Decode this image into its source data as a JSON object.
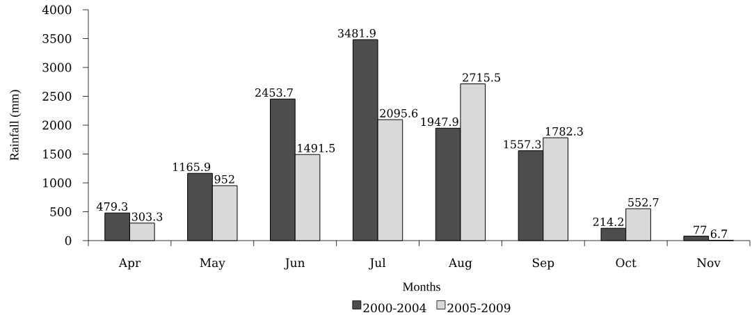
{
  "chart_data": {
    "type": "bar",
    "xlabel": "Months",
    "ylabel": "Rainfall (mm)",
    "categories": [
      "Apr",
      "May",
      "Jun",
      "Jul",
      "Aug",
      "Sep",
      "Oct",
      "Nov"
    ],
    "series": [
      {
        "name": "2000-2004",
        "color": "#4d4d4d",
        "values": [
          479.3,
          1165.9,
          2453.7,
          3481.9,
          1947.9,
          1557.3,
          214.2,
          77
        ]
      },
      {
        "name": "2005-2009",
        "color": "#d9d9d9",
        "values": [
          303.3,
          952,
          1491.5,
          2095.6,
          2715.5,
          1782.3,
          552.7,
          6.7
        ]
      }
    ],
    "ylim": [
      0,
      4000
    ],
    "yticks": [
      0,
      500,
      1000,
      1500,
      2000,
      2500,
      3000,
      3500,
      4000
    ],
    "legend": "bottom",
    "data_labels": true
  }
}
